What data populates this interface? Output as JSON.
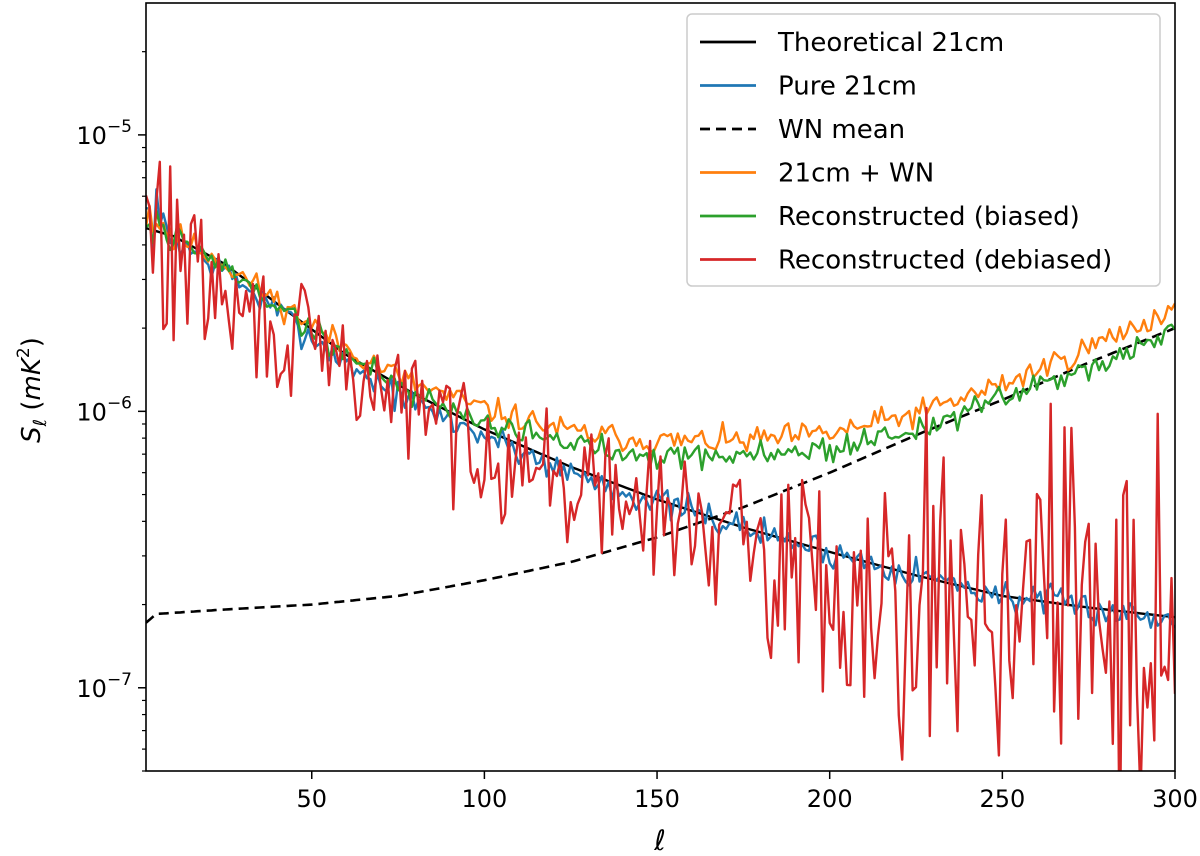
{
  "chart_data": {
    "type": "line",
    "title": "",
    "xlabel": "ℓ",
    "ylabel_base": "S",
    "ylabel_sub": "ℓ",
    "ylabel_unit_open": " (",
    "ylabel_unit": "mK",
    "ylabel_unit_sup": "2",
    "ylabel_unit_close": ")",
    "xscale": "linear",
    "yscale": "log",
    "xlim": [
      2,
      300
    ],
    "ylim": [
      5e-08,
      3e-05
    ],
    "x_ticks": [
      50,
      100,
      150,
      200,
      250,
      300
    ],
    "x_tick_labels": [
      "50",
      "100",
      "150",
      "200",
      "250",
      "300"
    ],
    "y_ticks": [
      1e-07,
      1e-06,
      1e-05
    ],
    "y_tick_base": "10",
    "y_tick_exponents": [
      "−7",
      "−6",
      "−5"
    ],
    "grid": false,
    "legend_position": "top-right",
    "series": [
      {
        "name": "Theoretical 21cm",
        "color": "#000000",
        "style": "solid",
        "key_points": [
          [
            2,
            4.6e-06
          ],
          [
            10,
            4.3e-06
          ],
          [
            25,
            3.4e-06
          ],
          [
            40,
            2.45e-06
          ],
          [
            60,
            1.6e-06
          ],
          [
            80,
            1.15e-06
          ],
          [
            100,
            8.6e-07
          ],
          [
            125,
            6.3e-07
          ],
          [
            150,
            4.8e-07
          ],
          [
            175,
            3.8e-07
          ],
          [
            200,
            3.1e-07
          ],
          [
            225,
            2.55e-07
          ],
          [
            250,
            2.15e-07
          ],
          [
            275,
            1.95e-07
          ],
          [
            300,
            1.8e-07
          ]
        ],
        "noise": 0,
        "seed": 1
      },
      {
        "name": "Pure 21cm",
        "color": "#1f77b4",
        "style": "solid",
        "key_points": [
          [
            2,
            5e-06
          ],
          [
            10,
            4.2e-06
          ],
          [
            25,
            3.2e-06
          ],
          [
            40,
            2.3e-06
          ],
          [
            60,
            1.5e-06
          ],
          [
            80,
            1.05e-06
          ],
          [
            100,
            8.2e-07
          ],
          [
            125,
            6e-07
          ],
          [
            150,
            4.7e-07
          ],
          [
            175,
            3.8e-07
          ],
          [
            200,
            3.1e-07
          ],
          [
            225,
            2.6e-07
          ],
          [
            250,
            2.15e-07
          ],
          [
            275,
            1.95e-07
          ],
          [
            300,
            1.75e-07
          ]
        ],
        "noise": 0.07,
        "seed": 7
      },
      {
        "name": "WN mean",
        "color": "#000000",
        "style": "dashed",
        "key_points": [
          [
            2,
            1.72e-07
          ],
          [
            5,
            1.85e-07
          ],
          [
            25,
            1.92e-07
          ],
          [
            50,
            2e-07
          ],
          [
            75,
            2.15e-07
          ],
          [
            100,
            2.45e-07
          ],
          [
            125,
            2.85e-07
          ],
          [
            150,
            3.5e-07
          ],
          [
            175,
            4.5e-07
          ],
          [
            200,
            6e-07
          ],
          [
            225,
            8.2e-07
          ],
          [
            250,
            1.1e-06
          ],
          [
            275,
            1.5e-06
          ],
          [
            300,
            2e-06
          ]
        ],
        "noise": 0,
        "seed": 3
      },
      {
        "name": "21cm + WN",
        "color": "#ff7f0e",
        "style": "solid",
        "key_points": [
          [
            2,
            5.5e-06
          ],
          [
            10,
            4.4e-06
          ],
          [
            25,
            3.4e-06
          ],
          [
            40,
            2.5e-06
          ],
          [
            60,
            1.7e-06
          ],
          [
            80,
            1.25e-06
          ],
          [
            100,
            1.02e-06
          ],
          [
            125,
            8.4e-07
          ],
          [
            150,
            7.8e-07
          ],
          [
            175,
            7.8e-07
          ],
          [
            200,
            8.3e-07
          ],
          [
            225,
            9.8e-07
          ],
          [
            250,
            1.25e-06
          ],
          [
            275,
            1.7e-06
          ],
          [
            300,
            2.35e-06
          ]
        ],
        "noise": 0.06,
        "seed": 11
      },
      {
        "name": "Reconstructed (biased)",
        "color": "#2ca02c",
        "style": "solid",
        "key_points": [
          [
            2,
            5.2e-06
          ],
          [
            10,
            4.3e-06
          ],
          [
            25,
            3.3e-06
          ],
          [
            40,
            2.4e-06
          ],
          [
            60,
            1.6e-06
          ],
          [
            80,
            1.15e-06
          ],
          [
            100,
            9.2e-07
          ],
          [
            125,
            7.6e-07
          ],
          [
            150,
            7e-07
          ],
          [
            175,
            6.9e-07
          ],
          [
            200,
            7.3e-07
          ],
          [
            225,
            8.6e-07
          ],
          [
            250,
            1.1e-06
          ],
          [
            275,
            1.45e-06
          ],
          [
            300,
            1.95e-06
          ]
        ],
        "noise": 0.06,
        "seed": 19
      },
      {
        "name": "Reconstructed (debiased)",
        "color": "#d62728",
        "style": "solid",
        "key_points": [
          [
            2,
            4e-06
          ],
          [
            10,
            4e-06
          ],
          [
            25,
            2.4e-06
          ],
          [
            40,
            1.9e-06
          ],
          [
            60,
            1.4e-06
          ],
          [
            80,
            1.05e-06
          ],
          [
            100,
            7.5e-07
          ],
          [
            125,
            5.5e-07
          ],
          [
            150,
            4.3e-07
          ],
          [
            175,
            3.4e-07
          ],
          [
            200,
            2.4e-07
          ],
          [
            225,
            2.3e-07
          ],
          [
            250,
            2.2e-07
          ],
          [
            275,
            1.9e-07
          ],
          [
            300,
            1.5e-07
          ]
        ],
        "noise": 0.28,
        "seed": 29
      }
    ]
  }
}
